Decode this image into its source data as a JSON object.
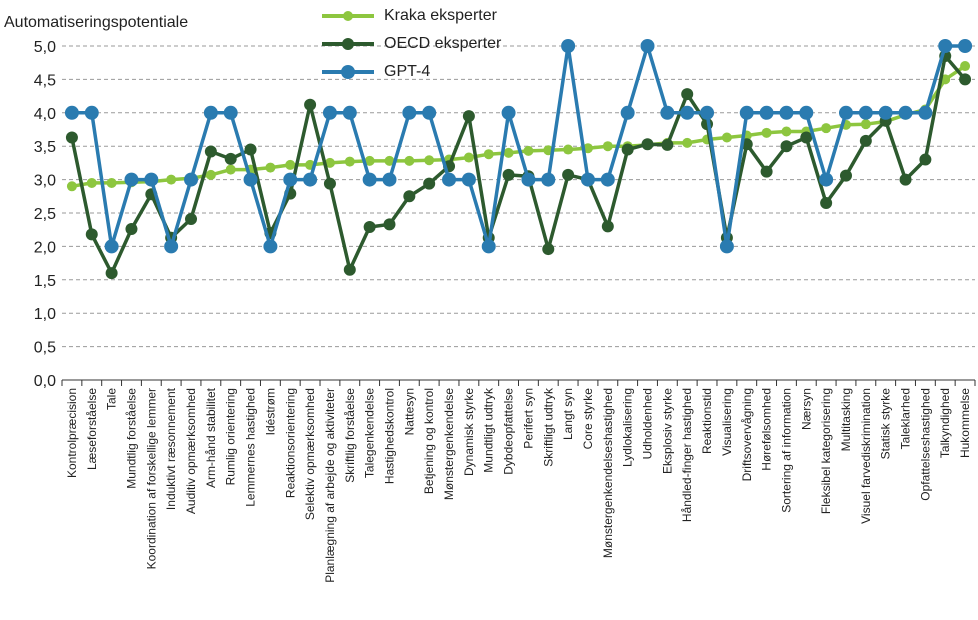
{
  "chart_data": {
    "type": "line",
    "ylabel": "Automatiseringspotentiale",
    "ylim": [
      0,
      5
    ],
    "yticks": [
      "0,0",
      "0,5",
      "1,0",
      "1,5",
      "2,0",
      "2,5",
      "3,0",
      "3,5",
      "4,0",
      "4,5",
      "5,0"
    ],
    "grid": "horizontal dashed",
    "legend_position": "top-center",
    "categories": [
      "Kontrolpræcision",
      "Læseforståelse",
      "Tale",
      "Mundtlig forståelse",
      "Koordination af forskellige lemmer",
      "Induktivt ræsonnement",
      "Auditiv opmærksomhed",
      "Arm-hånd stabilitet",
      "Rumlig orientering",
      "Lemmernes hastighed",
      "Idéstrøm",
      "Reaktionsorientering",
      "Selektiv opmærksomhed",
      "Planlægning af arbejde og aktiviteter",
      "Skriftlig forståelse",
      "Talegenkendelse",
      "Hastighedskontrol",
      "Nattesyn",
      "Betjening og kontrol",
      "Mønstergenkendelse",
      "Dynamisk styrke",
      "Mundtligt udtryk",
      "Dybdeopfattelse",
      "Perifert syn",
      "Skriftligt udtryk",
      "Langt syn",
      "Core styrke",
      "Mønstergenkendelseshastighed",
      "Lydlokalisering",
      "Udholdenhed",
      "Eksplosiv styrke",
      "Håndled-finger hastighed",
      "Reaktionstid",
      "Visualisering",
      "Driftsovervågning",
      "Hørefølsomhed",
      "Sortering af information",
      "Nærsyn",
      "Fleksibel kategorisering",
      "Multitasking",
      "Visuel farvediskrimination",
      "Statisk styrke",
      "Taleklarhed",
      "Opfattelseshastighed",
      "Talkyndighed",
      "Hukommelse"
    ],
    "series": [
      {
        "name": "Kraka eksperter",
        "color": "#8dc63f",
        "values": [
          2.9,
          2.95,
          2.95,
          2.96,
          2.97,
          3.0,
          3.02,
          3.07,
          3.15,
          3.15,
          3.18,
          3.22,
          3.22,
          3.25,
          3.27,
          3.28,
          3.28,
          3.28,
          3.29,
          3.3,
          3.33,
          3.38,
          3.4,
          3.43,
          3.44,
          3.45,
          3.47,
          3.5,
          3.5,
          3.52,
          3.55,
          3.55,
          3.6,
          3.63,
          3.66,
          3.7,
          3.72,
          3.72,
          3.77,
          3.82,
          3.83,
          3.87,
          3.97,
          4.05,
          4.5,
          4.7
        ]
      },
      {
        "name": "OECD eksperter",
        "color": "#2d5a2e",
        "values": [
          3.63,
          2.18,
          1.6,
          2.26,
          2.78,
          2.13,
          2.41,
          3.42,
          3.31,
          3.45,
          2.2,
          2.79,
          4.12,
          2.94,
          1.65,
          2.29,
          2.33,
          2.75,
          2.94,
          3.2,
          3.95,
          2.13,
          3.07,
          3.05,
          1.96,
          3.07,
          3.0,
          2.3,
          3.45,
          3.53,
          3.52,
          4.28,
          3.83,
          2.13,
          3.53,
          3.12,
          3.5,
          3.63,
          2.65,
          3.06,
          3.58,
          3.88,
          3.0,
          3.3,
          4.85,
          4.5
        ]
      },
      {
        "name": "GPT-4",
        "color": "#2a7bb0",
        "values": [
          4,
          4,
          2,
          3,
          3,
          2,
          3,
          4,
          4,
          3,
          2,
          3,
          3,
          4,
          4,
          3,
          3,
          4,
          4,
          3,
          3,
          2,
          4,
          3,
          3,
          5,
          3,
          3,
          4,
          5,
          4,
          4,
          4,
          2,
          4,
          4,
          4,
          4,
          3,
          4,
          4,
          4,
          4,
          4,
          5,
          5
        ]
      }
    ]
  }
}
